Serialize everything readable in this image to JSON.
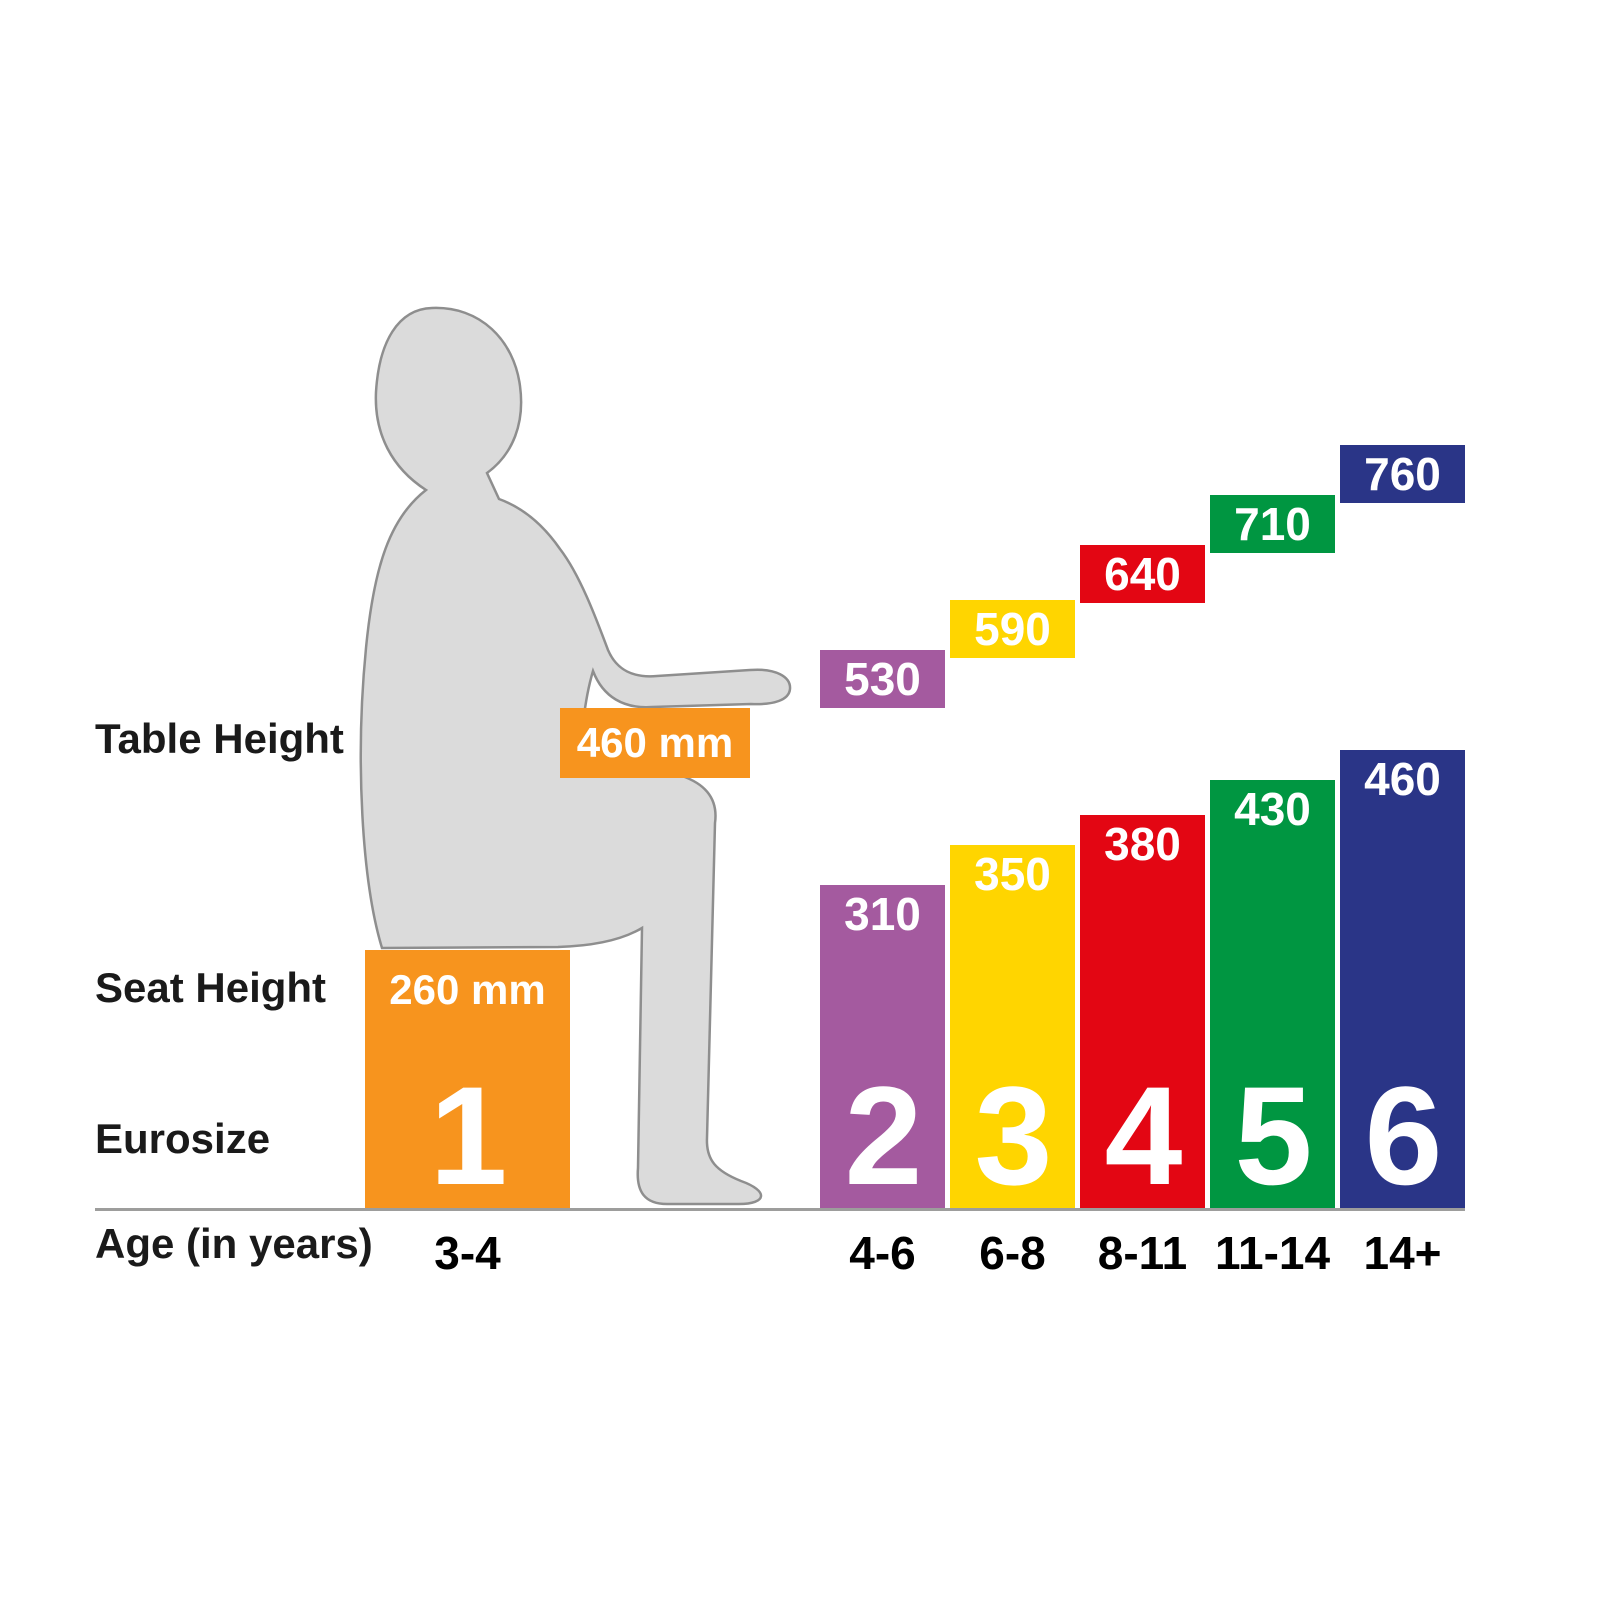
{
  "labels": {
    "table_height": "Table Height",
    "seat_height": "Seat Height",
    "eurosize": "Eurosize",
    "age": "Age (in years)"
  },
  "size1": {
    "table_label": "460 mm",
    "seat_label": "260 mm"
  },
  "chart_data": {
    "type": "bar",
    "categories": [
      "3-4",
      "4-6",
      "6-8",
      "8-11",
      "11-14",
      "14+"
    ],
    "x_axis_label": "Age (in years)",
    "series": [
      {
        "name": "Table Height",
        "units": "mm",
        "values": [
          460,
          530,
          590,
          640,
          710,
          760
        ]
      },
      {
        "name": "Seat Height",
        "units": "mm",
        "values": [
          260,
          310,
          350,
          380,
          430,
          460
        ]
      }
    ],
    "eurosizes": [
      "1",
      "2",
      "3",
      "4",
      "5",
      "6"
    ],
    "colors": [
      "#F7941E",
      "#A45A9F",
      "#FFD500",
      "#E30613",
      "#009641",
      "#2A3587"
    ],
    "ylim": [
      0,
      800
    ],
    "grid": false,
    "legend": false
  }
}
